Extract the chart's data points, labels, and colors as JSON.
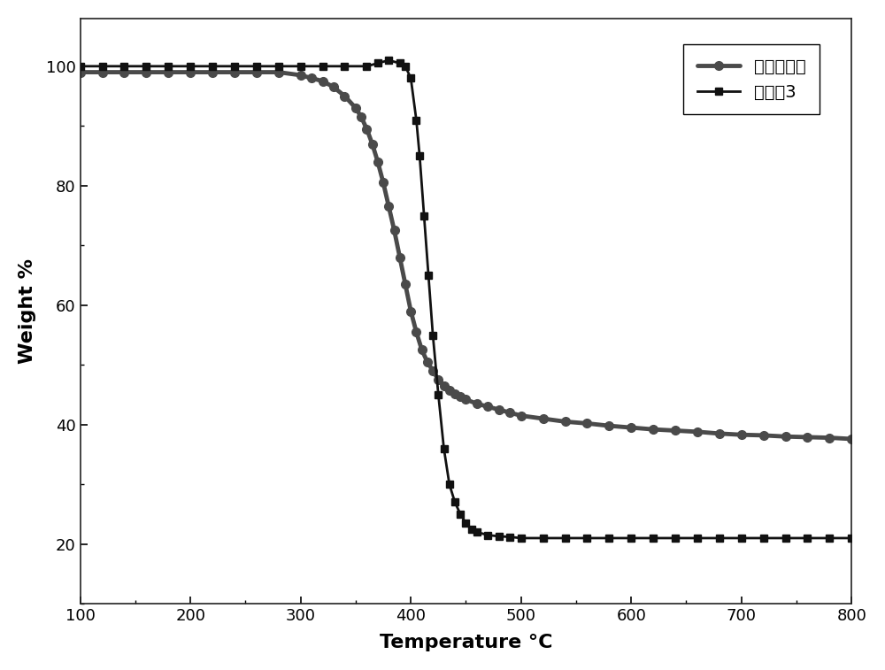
{
  "title": "",
  "xlabel": "Temperature °C",
  "ylabel": "Weight %",
  "xlim": [
    100,
    800
  ],
  "ylim": [
    10,
    108
  ],
  "yticks": [
    20,
    40,
    60,
    80,
    100
  ],
  "xticks": [
    100,
    200,
    300,
    400,
    500,
    600,
    700,
    800
  ],
  "legend_labels": [
    "实施例3",
    "对比化合物"
  ],
  "line1_color": "#111111",
  "line2_color": "#4a4a4a",
  "background_color": "#ffffff",
  "line1_x": [
    100,
    120,
    140,
    160,
    180,
    200,
    220,
    240,
    260,
    280,
    300,
    320,
    340,
    360,
    370,
    380,
    390,
    395,
    400,
    405,
    408,
    412,
    416,
    420,
    425,
    430,
    435,
    440,
    445,
    450,
    455,
    460,
    470,
    480,
    490,
    500,
    520,
    540,
    560,
    580,
    600,
    620,
    640,
    660,
    680,
    700,
    720,
    740,
    760,
    780,
    800
  ],
  "line1_y": [
    100,
    100,
    100,
    100,
    100,
    100,
    100,
    100,
    100,
    100,
    100,
    100,
    100,
    100,
    100.5,
    101,
    100.5,
    100,
    98,
    91,
    85,
    75,
    65,
    55,
    45,
    36,
    30,
    27,
    25,
    23.5,
    22.5,
    22,
    21.5,
    21.3,
    21.2,
    21.0,
    21.0,
    21.0,
    21.0,
    21.0,
    21.0,
    21.0,
    21.0,
    21.0,
    21.0,
    21.0,
    21.0,
    21.0,
    21.0,
    21.0,
    21.0
  ],
  "line2_x": [
    100,
    120,
    140,
    160,
    180,
    200,
    220,
    240,
    260,
    280,
    300,
    310,
    320,
    330,
    340,
    350,
    355,
    360,
    365,
    370,
    375,
    380,
    385,
    390,
    395,
    400,
    405,
    410,
    415,
    420,
    425,
    430,
    435,
    440,
    445,
    450,
    460,
    470,
    480,
    490,
    500,
    520,
    540,
    560,
    580,
    600,
    620,
    640,
    660,
    680,
    700,
    720,
    740,
    760,
    780,
    800
  ],
  "line2_y": [
    99.0,
    99.0,
    99.0,
    99.0,
    99.0,
    99.0,
    99.0,
    99.0,
    99.0,
    99.0,
    98.5,
    98.0,
    97.5,
    96.5,
    95.0,
    93.0,
    91.5,
    89.5,
    87.0,
    84.0,
    80.5,
    76.5,
    72.5,
    68.0,
    63.5,
    59.0,
    55.5,
    52.5,
    50.5,
    49.0,
    47.5,
    46.5,
    45.8,
    45.2,
    44.7,
    44.2,
    43.5,
    43.0,
    42.5,
    42.0,
    41.5,
    41.0,
    40.5,
    40.2,
    39.8,
    39.5,
    39.2,
    39.0,
    38.8,
    38.5,
    38.3,
    38.2,
    38.0,
    37.9,
    37.8,
    37.6
  ]
}
